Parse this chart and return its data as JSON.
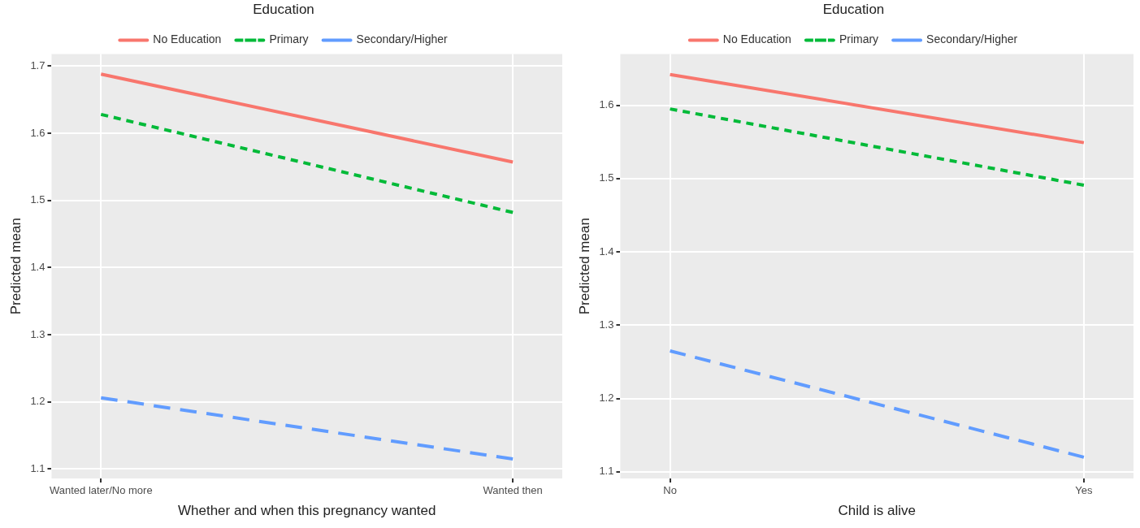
{
  "chart_data": [
    {
      "type": "line",
      "legend_title": "Education",
      "xlabel": "Whether and when this pregnancy wanted",
      "ylabel": "Predicted mean",
      "categories": [
        "Wanted later/No more",
        "Wanted then"
      ],
      "series": [
        {
          "name": "No Education",
          "color": "#f8766d",
          "values": [
            1.688,
            1.557
          ],
          "line_style": "solid"
        },
        {
          "name": "Primary",
          "color": "#00ba38",
          "values": [
            1.628,
            1.482
          ],
          "line_style": "dashed"
        },
        {
          "name": "Secondary/Higher",
          "color": "#619cff",
          "values": [
            1.206,
            1.115
          ],
          "line_style": "dashed"
        }
      ],
      "ylim": [
        1.086,
        1.718
      ],
      "yticks": [
        1.1,
        1.2,
        1.3,
        1.4,
        1.5,
        1.6,
        1.7
      ],
      "grid": true,
      "legend": "top",
      "marker": "none"
    },
    {
      "type": "line",
      "legend_title": "Education",
      "xlabel": "Child is alive",
      "ylabel": "Predicted mean",
      "categories": [
        "No",
        "Yes"
      ],
      "series": [
        {
          "name": "No Education",
          "color": "#f8766d",
          "values": [
            1.642,
            1.549
          ],
          "line_style": "solid"
        },
        {
          "name": "Primary",
          "color": "#00ba38",
          "values": [
            1.595,
            1.491
          ],
          "line_style": "dashed"
        },
        {
          "name": "Secondary/Higher",
          "color": "#619cff",
          "values": [
            1.265,
            1.12
          ],
          "line_style": "dashed"
        }
      ],
      "ylim": [
        1.091,
        1.67
      ],
      "yticks": [
        1.1,
        1.2,
        1.3,
        1.4,
        1.5,
        1.6
      ],
      "grid": true,
      "legend": "top",
      "marker": "none"
    }
  ]
}
